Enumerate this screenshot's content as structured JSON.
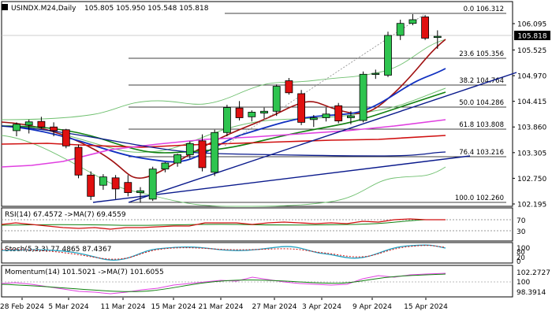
{
  "header": {
    "symbol": "USINDX.M24,Daily",
    "ohlc": "105.805 105.950 105.548 105.818"
  },
  "price_axis": {
    "ticks": [
      "106.095",
      "105.525",
      "104.970",
      "104.415",
      "103.860",
      "103.305",
      "102.750",
      "102.195"
    ],
    "current": "105.818"
  },
  "fib_levels": [
    {
      "label": "0.0 106.312"
    },
    {
      "label": "23.6 105.356"
    },
    {
      "label": "38.2 104.764"
    },
    {
      "label": "50.0 104.286"
    },
    {
      "label": "61.8 103.808"
    },
    {
      "label": "76.4 103.216"
    },
    {
      "label": "100.0 102.260"
    }
  ],
  "rsi": {
    "title": "RSI(14) 67.4572  ->MA(7) 69.4559",
    "ticks": [
      "70",
      "30"
    ]
  },
  "stoch": {
    "title": "Stoch(5,3,3) 77.4865 87.4367",
    "ticks": [
      "100",
      "80",
      "20",
      "0"
    ]
  },
  "momentum": {
    "title": "Momentum(14) 101.5021  ->MA(7) 101.6055",
    "ticks": [
      "102.2727",
      "100",
      "98.3914"
    ]
  },
  "date_axis": [
    "28 Feb 2024",
    "5 Mar 2024",
    "11 Mar 2024",
    "15 Mar 2024",
    "21 Mar 2024",
    "27 Mar 2024",
    "3 Apr 2024",
    "9 Apr 2024",
    "15 Apr 2024"
  ],
  "colors": {
    "bull": "#2ec44f",
    "bear": "#e01010",
    "blue": "#1030c0",
    "navy": "#0a1a8c",
    "red": "#d01010",
    "magenta": "#e040e0",
    "green": "#108010",
    "lightgreen": "#70c070"
  },
  "chart_data": {
    "type": "candlestick",
    "title": "USINDX.M24,Daily",
    "candles": [
      {
        "date": "2024-02-27",
        "o": 103.78,
        "h": 103.96,
        "l": 103.66,
        "c": 103.92
      },
      {
        "date": "2024-02-28",
        "o": 103.9,
        "h": 104.02,
        "l": 103.72,
        "c": 103.97
      },
      {
        "date": "2024-02-29",
        "o": 103.98,
        "h": 104.08,
        "l": 103.82,
        "c": 103.86
      },
      {
        "date": "2024-03-01",
        "o": 103.86,
        "h": 103.96,
        "l": 103.66,
        "c": 103.78
      },
      {
        "date": "2024-03-04",
        "o": 103.8,
        "h": 103.82,
        "l": 103.4,
        "c": 103.45
      },
      {
        "date": "2024-03-05",
        "o": 103.42,
        "h": 103.48,
        "l": 102.75,
        "c": 102.82
      },
      {
        "date": "2024-03-06",
        "o": 102.82,
        "h": 102.9,
        "l": 102.28,
        "c": 102.36
      },
      {
        "date": "2024-03-07",
        "o": 102.6,
        "h": 102.84,
        "l": 102.5,
        "c": 102.78
      },
      {
        "date": "2024-03-08",
        "o": 102.76,
        "h": 102.82,
        "l": 102.3,
        "c": 102.52
      },
      {
        "date": "2024-03-11",
        "o": 102.66,
        "h": 102.82,
        "l": 102.36,
        "c": 102.44
      },
      {
        "date": "2024-03-12",
        "o": 102.44,
        "h": 102.56,
        "l": 102.22,
        "c": 102.48
      },
      {
        "date": "2024-03-13",
        "o": 102.3,
        "h": 103.0,
        "l": 102.26,
        "c": 102.95
      },
      {
        "date": "2024-03-14",
        "o": 102.95,
        "h": 103.1,
        "l": 102.88,
        "c": 103.08
      },
      {
        "date": "2024-03-15",
        "o": 103.08,
        "h": 103.28,
        "l": 103.0,
        "c": 103.26
      },
      {
        "date": "2024-03-18",
        "o": 103.26,
        "h": 103.55,
        "l": 103.18,
        "c": 103.5
      },
      {
        "date": "2024-03-19",
        "o": 103.56,
        "h": 103.7,
        "l": 102.9,
        "c": 102.98
      },
      {
        "date": "2024-03-20",
        "o": 102.88,
        "h": 103.8,
        "l": 102.8,
        "c": 103.74
      },
      {
        "date": "2024-03-21",
        "o": 103.74,
        "h": 104.34,
        "l": 103.66,
        "c": 104.28
      },
      {
        "date": "2024-03-22",
        "o": 104.27,
        "h": 104.42,
        "l": 104.0,
        "c": 104.06
      },
      {
        "date": "2024-03-25",
        "o": 104.08,
        "h": 104.22,
        "l": 103.98,
        "c": 104.18
      },
      {
        "date": "2024-03-26",
        "o": 104.16,
        "h": 104.28,
        "l": 104.04,
        "c": 104.2
      },
      {
        "date": "2024-03-27",
        "o": 104.2,
        "h": 104.78,
        "l": 104.1,
        "c": 104.74
      },
      {
        "date": "2024-03-28",
        "o": 104.86,
        "h": 104.92,
        "l": 104.56,
        "c": 104.6
      },
      {
        "date": "2024-04-01",
        "o": 104.58,
        "h": 104.66,
        "l": 103.9,
        "c": 103.96
      },
      {
        "date": "2024-04-02",
        "o": 104.02,
        "h": 104.12,
        "l": 103.86,
        "c": 104.06
      },
      {
        "date": "2024-04-03",
        "o": 104.06,
        "h": 104.28,
        "l": 103.98,
        "c": 104.14
      },
      {
        "date": "2024-04-04",
        "o": 104.32,
        "h": 104.38,
        "l": 103.94,
        "c": 103.99
      },
      {
        "date": "2024-04-05",
        "o": 104.06,
        "h": 104.2,
        "l": 103.92,
        "c": 104.1
      },
      {
        "date": "2024-04-08",
        "o": 104.0,
        "h": 105.06,
        "l": 103.96,
        "c": 105.0
      },
      {
        "date": "2024-04-09",
        "o": 105.0,
        "h": 105.1,
        "l": 104.9,
        "c": 105.02
      },
      {
        "date": "2024-04-10",
        "o": 104.98,
        "h": 105.92,
        "l": 104.94,
        "c": 105.84
      },
      {
        "date": "2024-04-11",
        "o": 105.84,
        "h": 106.18,
        "l": 105.74,
        "c": 106.1
      },
      {
        "date": "2024-04-12",
        "o": 106.1,
        "h": 106.3,
        "l": 106.06,
        "c": 106.18
      },
      {
        "date": "2024-04-15",
        "o": 106.24,
        "h": 106.28,
        "l": 105.74,
        "c": 105.78
      },
      {
        "date": "2024-04-16",
        "o": 105.8,
        "h": 105.95,
        "l": 105.55,
        "c": 105.82
      }
    ]
  }
}
